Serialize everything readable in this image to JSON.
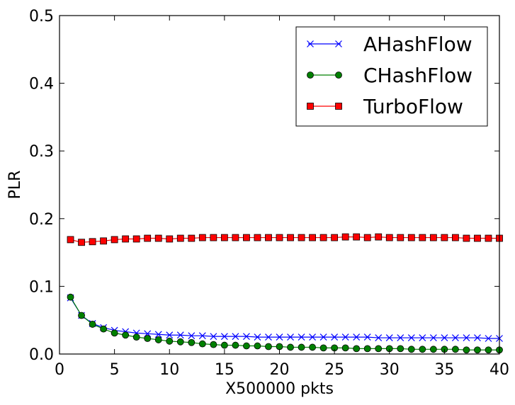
{
  "chart_data": {
    "type": "line",
    "xlabel": "X500000 pkts",
    "ylabel": "PLR",
    "xlim": [
      0,
      40
    ],
    "ylim": [
      0,
      0.5
    ],
    "xticks": [
      0,
      5,
      10,
      15,
      20,
      25,
      30,
      35,
      40
    ],
    "yticks": [
      0.0,
      0.1,
      0.2,
      0.3,
      0.4,
      0.5
    ],
    "xtick_labels": [
      "0",
      "5",
      "10",
      "15",
      "20",
      "25",
      "30",
      "35",
      "40"
    ],
    "ytick_labels": [
      "0.0",
      "0.1",
      "0.2",
      "0.3",
      "0.4",
      "0.5"
    ],
    "grid": false,
    "legend_position": "top-right",
    "x": [
      1,
      2,
      3,
      4,
      5,
      6,
      7,
      8,
      9,
      10,
      11,
      12,
      13,
      14,
      15,
      16,
      17,
      18,
      19,
      20,
      21,
      22,
      23,
      24,
      25,
      26,
      27,
      28,
      29,
      30,
      31,
      32,
      33,
      34,
      35,
      36,
      37,
      38,
      39,
      40
    ],
    "series": [
      {
        "name": "AHashFlow",
        "color": "#0000ff",
        "marker": "x",
        "values": [
          0.083,
          0.057,
          0.045,
          0.039,
          0.035,
          0.033,
          0.031,
          0.03,
          0.029,
          0.028,
          0.028,
          0.027,
          0.027,
          0.026,
          0.026,
          0.026,
          0.026,
          0.025,
          0.025,
          0.025,
          0.025,
          0.025,
          0.025,
          0.025,
          0.025,
          0.025,
          0.025,
          0.025,
          0.024,
          0.024,
          0.024,
          0.024,
          0.024,
          0.024,
          0.024,
          0.024,
          0.024,
          0.024,
          0.023,
          0.023
        ]
      },
      {
        "name": "CHashFlow",
        "color": "#008000",
        "marker": "circle",
        "values": [
          0.084,
          0.057,
          0.044,
          0.037,
          0.031,
          0.028,
          0.025,
          0.023,
          0.021,
          0.019,
          0.018,
          0.017,
          0.015,
          0.014,
          0.013,
          0.013,
          0.012,
          0.012,
          0.011,
          0.011,
          0.01,
          0.01,
          0.01,
          0.009,
          0.009,
          0.009,
          0.008,
          0.008,
          0.008,
          0.008,
          0.008,
          0.007,
          0.007,
          0.007,
          0.007,
          0.007,
          0.006,
          0.006,
          0.006,
          0.006
        ]
      },
      {
        "name": "TurboFlow",
        "color": "#ff0000",
        "marker": "square",
        "values": [
          0.169,
          0.165,
          0.166,
          0.167,
          0.169,
          0.17,
          0.17,
          0.171,
          0.171,
          0.17,
          0.171,
          0.171,
          0.172,
          0.172,
          0.172,
          0.172,
          0.172,
          0.172,
          0.172,
          0.172,
          0.172,
          0.172,
          0.172,
          0.172,
          0.172,
          0.173,
          0.173,
          0.172,
          0.173,
          0.172,
          0.172,
          0.172,
          0.172,
          0.172,
          0.172,
          0.172,
          0.171,
          0.171,
          0.171,
          0.171
        ]
      }
    ]
  }
}
